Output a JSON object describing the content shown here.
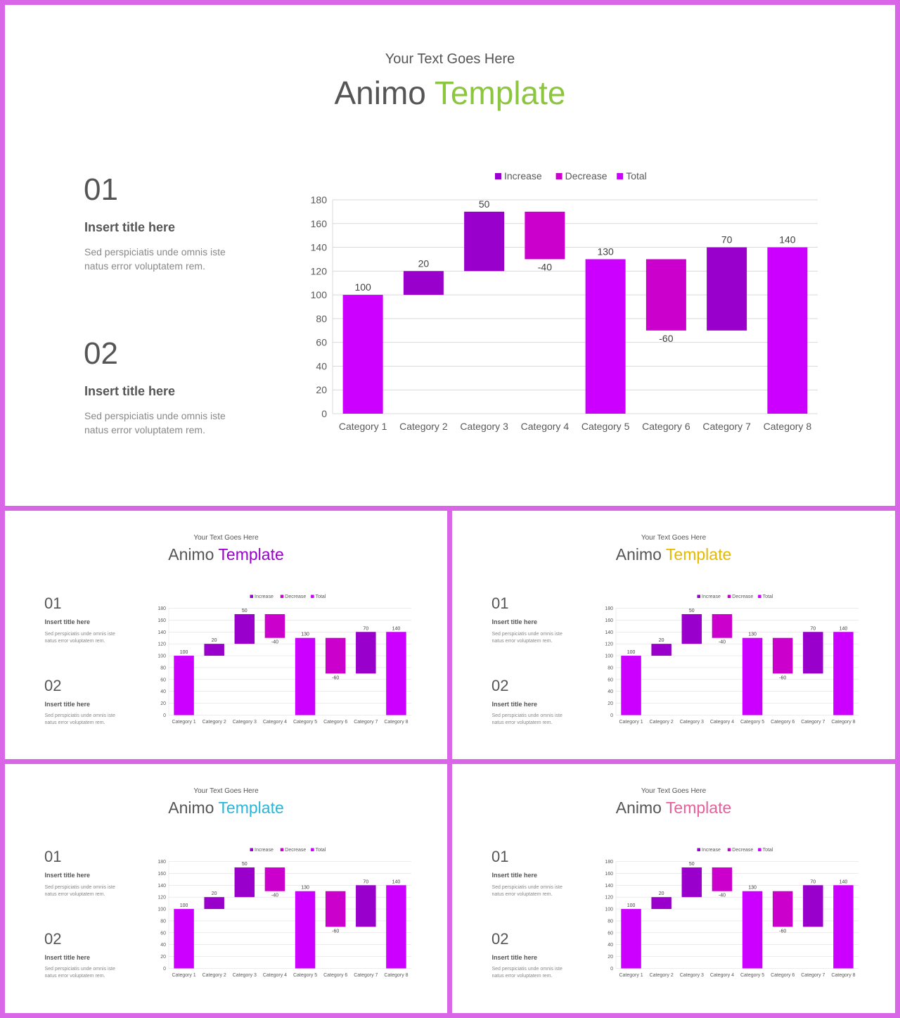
{
  "slide_text": {
    "subtitle": "Your Text Goes Here",
    "title_word1": "Animo",
    "title_word2": "Template",
    "item1_number": "01",
    "item1_title": "Insert title here",
    "item1_body_line1": "Sed perspiciatis unde omnis iste",
    "item1_body_line2": "natus error voluptatem rem.",
    "item2_number": "02",
    "item2_title": "Insert title here",
    "item2_body_line1": "Sed perspiciatis unde omnis iste",
    "item2_body_line2": "natus error voluptatem rem."
  },
  "colors": {
    "frame": "#d966e6",
    "increase": "#9900cc",
    "decrease": "#cc00cc",
    "total": "#cc00ff",
    "text": "#555555"
  },
  "slides": [
    {
      "accent": "#8cc63f"
    },
    {
      "accent": "#9900cc"
    },
    {
      "accent": "#e6b800"
    },
    {
      "accent": "#29b6d9"
    },
    {
      "accent": "#e6609a"
    }
  ],
  "chart_data": {
    "type": "bar",
    "subtype": "waterfall",
    "legend": [
      "Increase",
      "Decrease",
      "Total"
    ],
    "legend_position": "top",
    "categories": [
      "Category 1",
      "Category 2",
      "Category 3",
      "Category 4",
      "Category 5",
      "Category 6",
      "Category 7",
      "Category 8"
    ],
    "bars": [
      {
        "kind": "total",
        "base": 0,
        "top": 100,
        "label": "100"
      },
      {
        "kind": "increase",
        "base": 100,
        "top": 120,
        "label": "20"
      },
      {
        "kind": "increase",
        "base": 120,
        "top": 170,
        "label": "50"
      },
      {
        "kind": "decrease",
        "base": 130,
        "top": 170,
        "label": "-40"
      },
      {
        "kind": "total",
        "base": 0,
        "top": 130,
        "label": "130"
      },
      {
        "kind": "decrease",
        "base": 70,
        "top": 130,
        "label": "-60"
      },
      {
        "kind": "increase",
        "base": 70,
        "top": 140,
        "label": "70"
      },
      {
        "kind": "total",
        "base": 0,
        "top": 140,
        "label": "140"
      }
    ],
    "ylim": [
      0,
      180
    ],
    "yticks": [
      0,
      20,
      40,
      60,
      80,
      100,
      120,
      140,
      160,
      180
    ],
    "grid": true
  }
}
